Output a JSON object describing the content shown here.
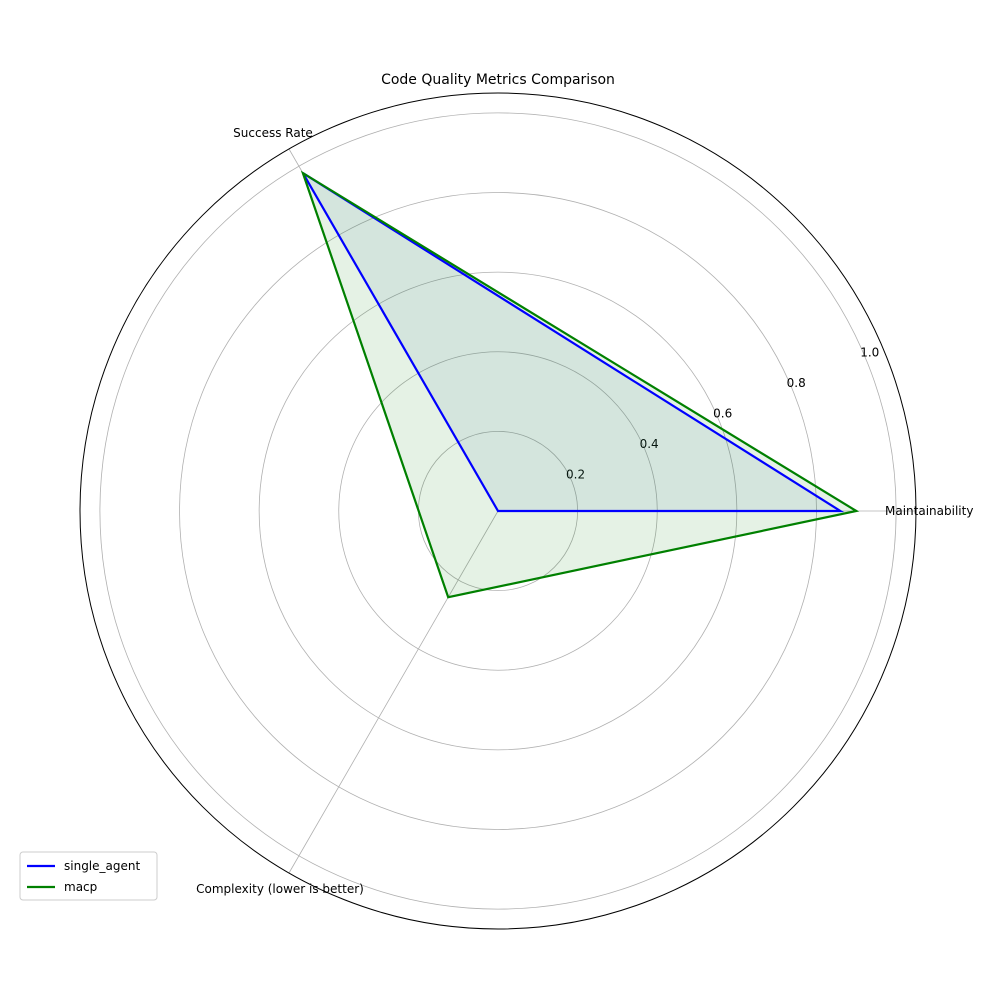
{
  "chart_data": {
    "type": "radar",
    "title": "Code Quality Metrics Comparison",
    "axes": [
      "Maintainability",
      "Success Rate",
      "Complexity (lower is better)"
    ],
    "rlim": [
      0,
      1.05
    ],
    "rticks": [
      0.2,
      0.4,
      0.6,
      0.8,
      1.0
    ],
    "rtick_labels": [
      "0.2",
      "0.4",
      "0.6",
      "0.8",
      "1.0"
    ],
    "grid": true,
    "legend": "lower-left",
    "series": [
      {
        "name": "single_agent",
        "values": [
          0.86,
          0.98,
          0.0
        ],
        "color": "#0000ff",
        "fill": "#4c72b0"
      },
      {
        "name": "macp",
        "values": [
          0.9,
          0.98,
          0.25
        ],
        "color": "#008000",
        "fill": "#008000"
      }
    ]
  }
}
